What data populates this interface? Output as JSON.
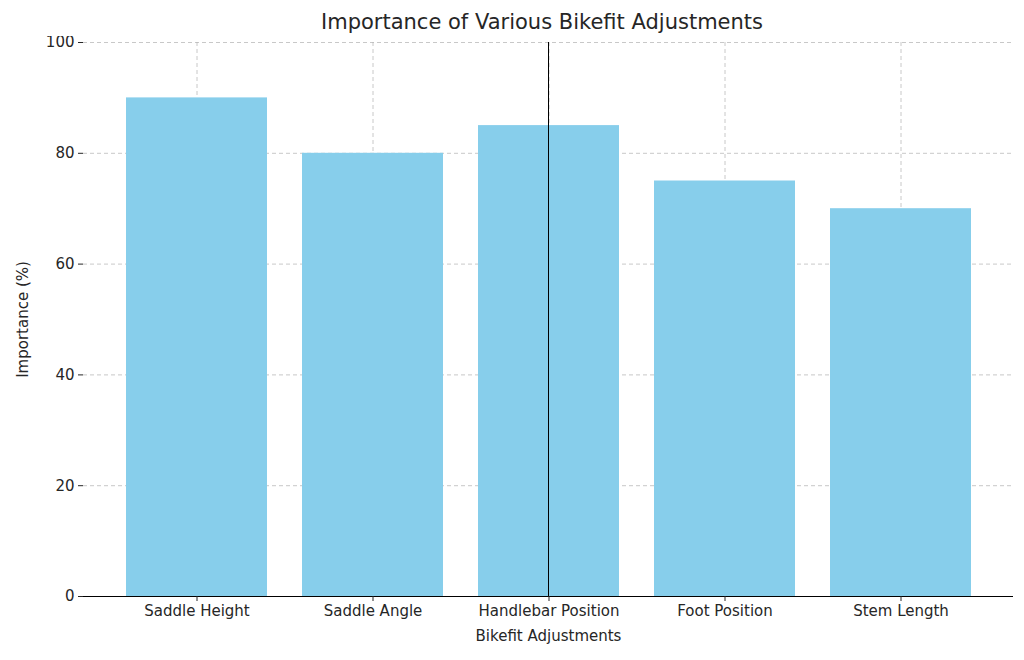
{
  "chart_data": {
    "type": "bar",
    "title": "Importance of Various Bikefit Adjustments",
    "x_label": "Bikefit Adjustments",
    "y_label": "Importance (%)",
    "categories": [
      "Saddle Height",
      "Saddle Angle",
      "Handlebar Position",
      "Foot Position",
      "Stem Length"
    ],
    "values": [
      90,
      80,
      85,
      75,
      70
    ],
    "color": "#87ceeb",
    "ylim": [
      0,
      100
    ],
    "yticks": [
      0,
      20,
      40,
      60,
      80,
      100
    ],
    "grid": true
  }
}
